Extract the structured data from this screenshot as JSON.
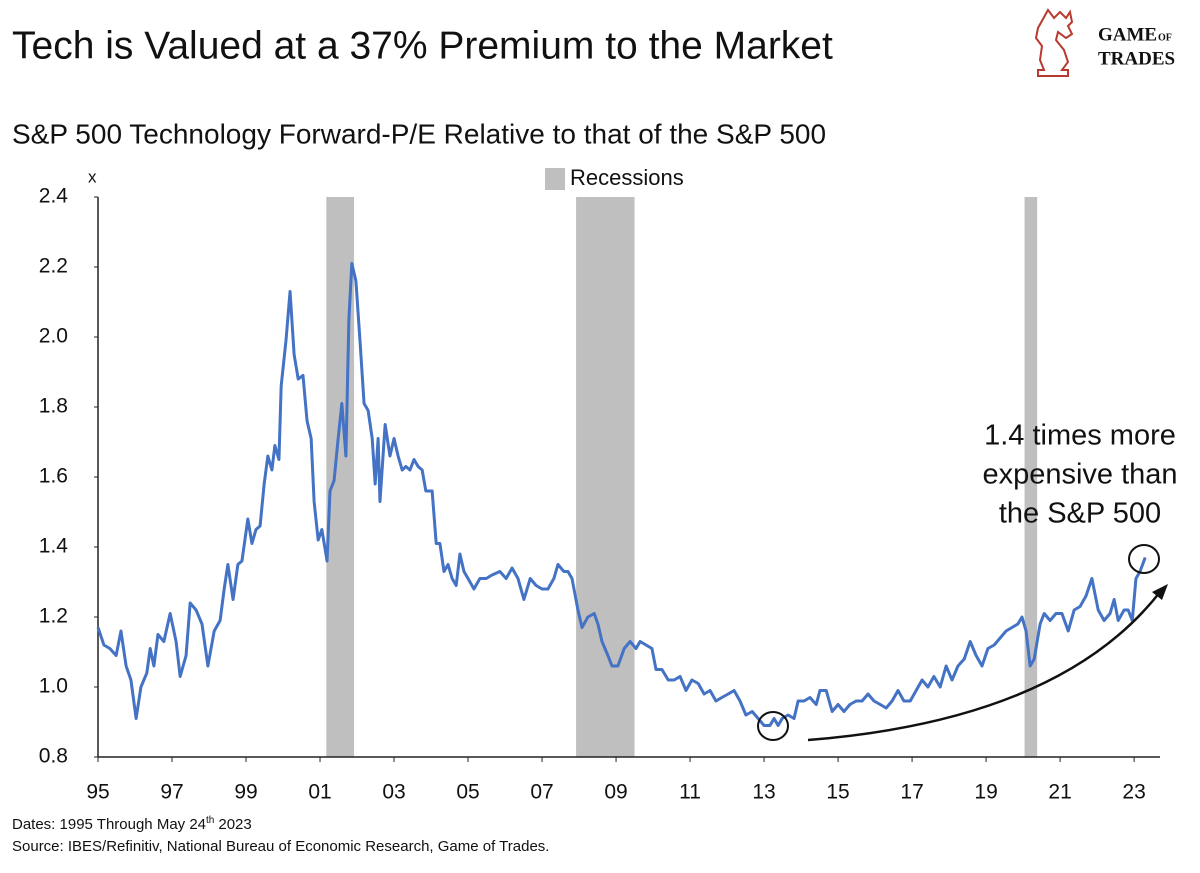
{
  "chart_data": {
    "type": "line",
    "title": "Tech is Valued at a 37% Premium to the Market",
    "subtitle": "S&P 500 Technology Forward-P/E Relative to that of the S&P 500",
    "y_unit": "x",
    "logo": [
      "GAME",
      "OF",
      "TRADES"
    ],
    "annotation": [
      "1.4 times more",
      "expensive than",
      "the S&P 500"
    ],
    "footnote_dates": [
      "Dates: 1995 Through May 24",
      "th",
      "2023"
    ],
    "source": "Source: IBES/Refinitiv, National Bureau of Economic Research, Game of Trades.",
    "recession_label": "Recessions",
    "recession_color": "#bfbfbf",
    "recessions": [
      {
        "start": 2001.17,
        "end": 2001.92
      },
      {
        "start": 2007.92,
        "end": 2009.5
      },
      {
        "start": 2020.04,
        "end": 2020.38
      }
    ],
    "xlim": [
      1995,
      2023.7
    ],
    "xticks": [
      {
        "value": 1995,
        "label": "95"
      },
      {
        "value": 1997,
        "label": "97"
      },
      {
        "value": 1999,
        "label": "99"
      },
      {
        "value": 2001,
        "label": "01"
      },
      {
        "value": 2003,
        "label": "03"
      },
      {
        "value": 2005,
        "label": "05"
      },
      {
        "value": 2007,
        "label": "07"
      },
      {
        "value": 2009,
        "label": "09"
      },
      {
        "value": 2011,
        "label": "11"
      },
      {
        "value": 2013,
        "label": "13"
      },
      {
        "value": 2015,
        "label": "15"
      },
      {
        "value": 2017,
        "label": "17"
      },
      {
        "value": 2019,
        "label": "19"
      },
      {
        "value": 2021,
        "label": "21"
      },
      {
        "value": 2023,
        "label": "23"
      }
    ],
    "ylim": [
      0.8,
      2.4
    ],
    "yticks": [
      0.8,
      {
        "value": 1.0,
        "label": "1.0"
      },
      1.2,
      1.4,
      1.6,
      1.8,
      {
        "value": 2.0,
        "label": "2.0"
      },
      2.2,
      2.4
    ],
    "grid": false,
    "x": [
      1995.0,
      1995.16,
      1995.32,
      1995.49,
      1995.62,
      1995.76,
      1995.89,
      1996.03,
      1996.16,
      1996.32,
      1996.41,
      1996.51,
      1996.62,
      1996.78,
      1996.95,
      1997.11,
      1997.22,
      1997.38,
      1997.49,
      1997.65,
      1997.81,
      1997.97,
      1998.14,
      1998.3,
      1998.41,
      1998.51,
      1998.65,
      1998.78,
      1998.89,
      1999.05,
      1999.16,
      1999.27,
      1999.38,
      1999.49,
      1999.59,
      1999.7,
      1999.78,
      1999.89,
      1999.95,
      2000.08,
      2000.19,
      2000.3,
      2000.41,
      2000.54,
      2000.65,
      2000.76,
      2000.84,
      2000.95,
      2001.05,
      2001.19,
      2001.27,
      2001.38,
      2001.49,
      2001.59,
      2001.7,
      2001.78,
      2001.86,
      2001.97,
      2002.08,
      2002.19,
      2002.3,
      2002.41,
      2002.49,
      2002.57,
      2002.62,
      2002.76,
      2002.89,
      2003.0,
      2003.11,
      2003.22,
      2003.32,
      2003.43,
      2003.54,
      2003.65,
      2003.76,
      2003.86,
      2004.03,
      2004.14,
      2004.24,
      2004.35,
      2004.46,
      2004.57,
      2004.68,
      2004.78,
      2004.89,
      2005.0,
      2005.16,
      2005.32,
      2005.49,
      2005.65,
      2005.86,
      2006.03,
      2006.19,
      2006.35,
      2006.51,
      2006.68,
      2006.84,
      2007.0,
      2007.16,
      2007.32,
      2007.43,
      2007.59,
      2007.7,
      2007.81,
      2007.97,
      2008.08,
      2008.24,
      2008.41,
      2008.51,
      2008.62,
      2008.78,
      2008.89,
      2009.05,
      2009.22,
      2009.38,
      2009.54,
      2009.65,
      2009.81,
      2009.97,
      2010.08,
      2010.24,
      2010.41,
      2010.57,
      2010.73,
      2010.89,
      2011.05,
      2011.22,
      2011.38,
      2011.54,
      2011.7,
      2011.86,
      2012.03,
      2012.19,
      2012.35,
      2012.51,
      2012.68,
      2012.84,
      2013.0,
      2013.16,
      2013.27,
      2013.38,
      2013.49,
      2013.65,
      2013.81,
      2013.92,
      2014.08,
      2014.24,
      2014.41,
      2014.51,
      2014.68,
      2014.84,
      2015.0,
      2015.16,
      2015.32,
      2015.49,
      2015.65,
      2015.81,
      2015.97,
      2016.14,
      2016.3,
      2016.46,
      2016.62,
      2016.78,
      2016.95,
      2017.11,
      2017.27,
      2017.43,
      2017.59,
      2017.76,
      2017.92,
      2018.08,
      2018.24,
      2018.41,
      2018.57,
      2018.73,
      2018.89,
      2019.05,
      2019.22,
      2019.38,
      2019.54,
      2019.7,
      2019.86,
      2019.97,
      2020.08,
      2020.19,
      2020.3,
      2020.46,
      2020.57,
      2020.73,
      2020.89,
      2021.05,
      2021.22,
      2021.38,
      2021.54,
      2021.7,
      2021.86,
      2022.03,
      2022.19,
      2022.35,
      2022.46,
      2022.57,
      2022.73,
      2022.84,
      2022.95,
      2023.05,
      2023.16,
      2023.3
    ],
    "series": [
      {
        "color": "#4472c4",
        "values": [
          1.17,
          1.12,
          1.11,
          1.09,
          1.16,
          1.06,
          1.02,
          0.91,
          1.0,
          1.04,
          1.11,
          1.06,
          1.15,
          1.13,
          1.21,
          1.13,
          1.03,
          1.09,
          1.24,
          1.22,
          1.18,
          1.06,
          1.16,
          1.19,
          1.28,
          1.35,
          1.25,
          1.35,
          1.36,
          1.48,
          1.41,
          1.45,
          1.46,
          1.58,
          1.66,
          1.62,
          1.69,
          1.65,
          1.86,
          1.99,
          2.13,
          1.95,
          1.88,
          1.89,
          1.76,
          1.71,
          1.53,
          1.42,
          1.45,
          1.36,
          1.56,
          1.59,
          1.71,
          1.81,
          1.66,
          2.05,
          2.21,
          2.16,
          1.99,
          1.81,
          1.79,
          1.71,
          1.58,
          1.71,
          1.53,
          1.75,
          1.66,
          1.71,
          1.66,
          1.62,
          1.63,
          1.62,
          1.65,
          1.63,
          1.62,
          1.56,
          1.56,
          1.41,
          1.41,
          1.33,
          1.35,
          1.31,
          1.29,
          1.38,
          1.33,
          1.31,
          1.28,
          1.31,
          1.31,
          1.32,
          1.33,
          1.31,
          1.34,
          1.31,
          1.25,
          1.31,
          1.29,
          1.28,
          1.28,
          1.31,
          1.35,
          1.33,
          1.33,
          1.31,
          1.22,
          1.17,
          1.2,
          1.21,
          1.18,
          1.13,
          1.09,
          1.06,
          1.06,
          1.11,
          1.13,
          1.11,
          1.13,
          1.12,
          1.11,
          1.05,
          1.05,
          1.02,
          1.02,
          1.03,
          0.99,
          1.02,
          1.01,
          0.98,
          0.99,
          0.96,
          0.97,
          0.98,
          0.99,
          0.96,
          0.92,
          0.93,
          0.91,
          0.89,
          0.89,
          0.91,
          0.89,
          0.91,
          0.92,
          0.91,
          0.96,
          0.96,
          0.97,
          0.95,
          0.99,
          0.99,
          0.93,
          0.95,
          0.93,
          0.95,
          0.96,
          0.96,
          0.98,
          0.96,
          0.95,
          0.94,
          0.96,
          0.99,
          0.96,
          0.96,
          0.99,
          1.02,
          1.0,
          1.03,
          1.0,
          1.06,
          1.02,
          1.06,
          1.08,
          1.13,
          1.09,
          1.06,
          1.11,
          1.12,
          1.14,
          1.16,
          1.17,
          1.18,
          1.2,
          1.16,
          1.06,
          1.08,
          1.18,
          1.21,
          1.19,
          1.21,
          1.21,
          1.16,
          1.22,
          1.23,
          1.26,
          1.31,
          1.22,
          1.19,
          1.21,
          1.25,
          1.19,
          1.22,
          1.22,
          1.19,
          1.31,
          1.33,
          1.37
        ]
      }
    ]
  }
}
